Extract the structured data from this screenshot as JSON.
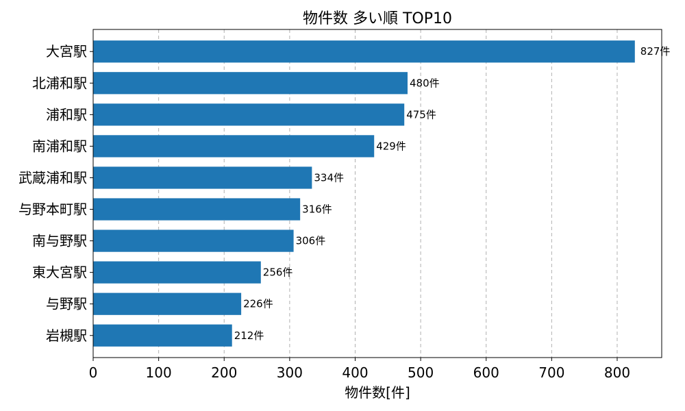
{
  "chart_data": {
    "type": "bar",
    "orientation": "horizontal",
    "title": "物件数 多い順 TOP10",
    "xlabel": "物件数[件]",
    "ylabel": "",
    "categories": [
      "大宮駅",
      "北浦和駅",
      "浦和駅",
      "南浦和駅",
      "武蔵浦和駅",
      "与野本町駅",
      "南与野駅",
      "東大宮駅",
      "与野駅",
      "岩槻駅"
    ],
    "values": [
      827,
      480,
      475,
      429,
      334,
      316,
      306,
      256,
      226,
      212
    ],
    "data_labels": [
      "827件",
      "480件",
      "475件",
      "429件",
      "334件",
      "316件",
      "306件",
      "256件",
      "226件",
      "212件"
    ],
    "xlim": [
      0,
      868
    ],
    "xticks": [
      0,
      100,
      200,
      300,
      400,
      500,
      600,
      700,
      800
    ],
    "xtick_labels": [
      "0",
      "100",
      "200",
      "300",
      "400",
      "500",
      "600",
      "700",
      "800"
    ],
    "grid": "x-axis dashed",
    "legend": "none",
    "bar_color": "#1f77b4"
  }
}
